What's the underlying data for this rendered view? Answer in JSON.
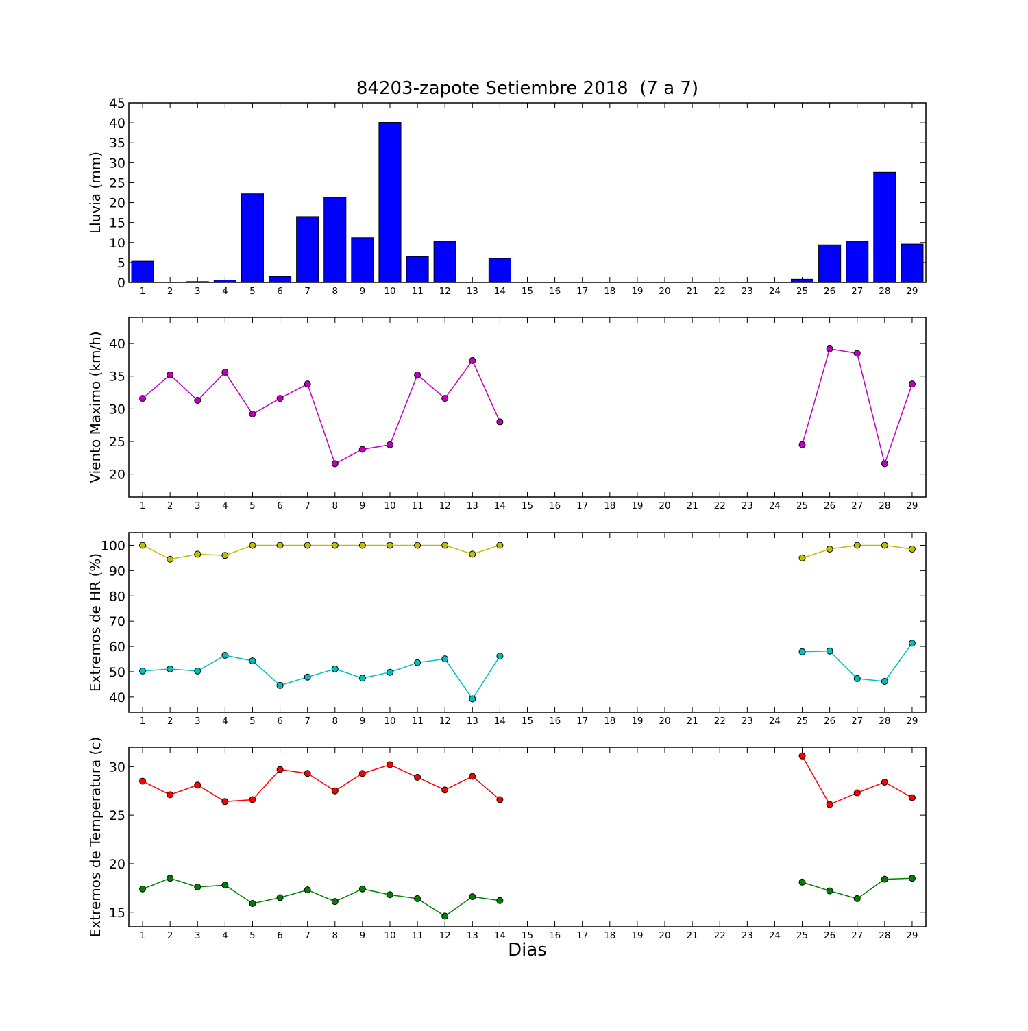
{
  "title": "84203-zapote Setiembre 2018  (7 a 7)",
  "xlabel": "Dias",
  "colors": {
    "rain": "#0000ff",
    "wind": "#bf00bf",
    "hr_max": "#bfbf00",
    "hr_min": "#00bfbf",
    "temp_max": "#ff0000",
    "temp_min": "#008000"
  },
  "chart_data": [
    {
      "type": "bar",
      "ylabel": "Lluvia (mm)",
      "ylim": [
        0,
        45
      ],
      "yticks": [
        0,
        5,
        10,
        15,
        20,
        25,
        30,
        35,
        40,
        45
      ],
      "categories": [
        "1",
        "2",
        "3",
        "4",
        "5",
        "6",
        "7",
        "8",
        "9",
        "10",
        "11",
        "12",
        "13",
        "14",
        "15",
        "16",
        "17",
        "18",
        "19",
        "20",
        "21",
        "22",
        "23",
        "24",
        "25",
        "26",
        "27",
        "28",
        "29"
      ],
      "values": [
        5.3,
        0,
        0.2,
        0.6,
        22.2,
        1.5,
        16.5,
        21.3,
        11.2,
        40.1,
        6.5,
        10.3,
        0,
        6.0,
        0,
        0,
        0,
        0,
        0,
        0,
        0,
        0,
        0,
        0,
        0.8,
        9.4,
        10.3,
        27.6,
        9.6
      ],
      "grid": false
    },
    {
      "type": "line",
      "ylabel": "Viento Maximo (km/h)",
      "ylim": [
        16.5,
        44
      ],
      "yticks": [
        20,
        25,
        30,
        35,
        40
      ],
      "x": [
        1,
        2,
        3,
        4,
        5,
        6,
        7,
        8,
        9,
        10,
        11,
        12,
        13,
        14,
        15,
        16,
        17,
        18,
        19,
        20,
        21,
        22,
        23,
        24,
        25,
        26,
        27,
        28,
        29
      ],
      "series": [
        {
          "values": [
            31.6,
            35.2,
            31.3,
            35.6,
            29.2,
            31.6,
            33.8,
            21.6,
            23.8,
            24.5,
            35.2,
            31.6,
            37.4,
            28.0,
            null,
            null,
            null,
            null,
            null,
            null,
            null,
            null,
            null,
            null,
            24.5,
            39.2,
            38.5,
            21.6,
            33.8
          ]
        }
      ],
      "grid": false
    },
    {
      "type": "line",
      "ylabel": "Extremos de HR (%)",
      "ylim": [
        34,
        105
      ],
      "yticks": [
        40,
        50,
        60,
        70,
        80,
        90,
        100
      ],
      "x": [
        1,
        2,
        3,
        4,
        5,
        6,
        7,
        8,
        9,
        10,
        11,
        12,
        13,
        14,
        15,
        16,
        17,
        18,
        19,
        20,
        21,
        22,
        23,
        24,
        25,
        26,
        27,
        28,
        29
      ],
      "series": [
        {
          "values": [
            100,
            94.5,
            96.5,
            96,
            100,
            100,
            100,
            100,
            100,
            100,
            100,
            100,
            96.5,
            100,
            null,
            null,
            null,
            null,
            null,
            null,
            null,
            null,
            null,
            null,
            95,
            98.5,
            100,
            100,
            98.5
          ]
        },
        {
          "values": [
            50.3,
            51.1,
            50.3,
            56.5,
            54.3,
            44.6,
            47.9,
            51.1,
            47.5,
            49.8,
            53.6,
            55.1,
            39.3,
            56.2,
            null,
            null,
            null,
            null,
            null,
            null,
            null,
            null,
            null,
            null,
            57.9,
            58.2,
            47.3,
            46.2,
            61.3
          ]
        }
      ],
      "grid": false
    },
    {
      "type": "line",
      "ylabel": "Extremos de Temperatura (c)",
      "ylim": [
        13.5,
        32
      ],
      "yticks": [
        15,
        20,
        25,
        30
      ],
      "x": [
        1,
        2,
        3,
        4,
        5,
        6,
        7,
        8,
        9,
        10,
        11,
        12,
        13,
        14,
        15,
        16,
        17,
        18,
        19,
        20,
        21,
        22,
        23,
        24,
        25,
        26,
        27,
        28,
        29
      ],
      "series": [
        {
          "values": [
            28.5,
            27.1,
            28.1,
            26.4,
            26.6,
            29.7,
            29.3,
            27.5,
            29.3,
            30.2,
            28.9,
            27.6,
            29.0,
            26.6,
            null,
            null,
            null,
            null,
            null,
            null,
            null,
            null,
            null,
            null,
            31.1,
            26.1,
            27.3,
            28.4,
            26.8
          ]
        },
        {
          "values": [
            17.4,
            18.5,
            17.6,
            17.8,
            15.9,
            16.5,
            17.3,
            16.1,
            17.4,
            16.8,
            16.4,
            14.6,
            16.6,
            16.2,
            null,
            null,
            null,
            null,
            null,
            null,
            null,
            null,
            null,
            null,
            18.1,
            17.2,
            16.4,
            18.4,
            18.5
          ]
        }
      ],
      "grid": false
    }
  ]
}
